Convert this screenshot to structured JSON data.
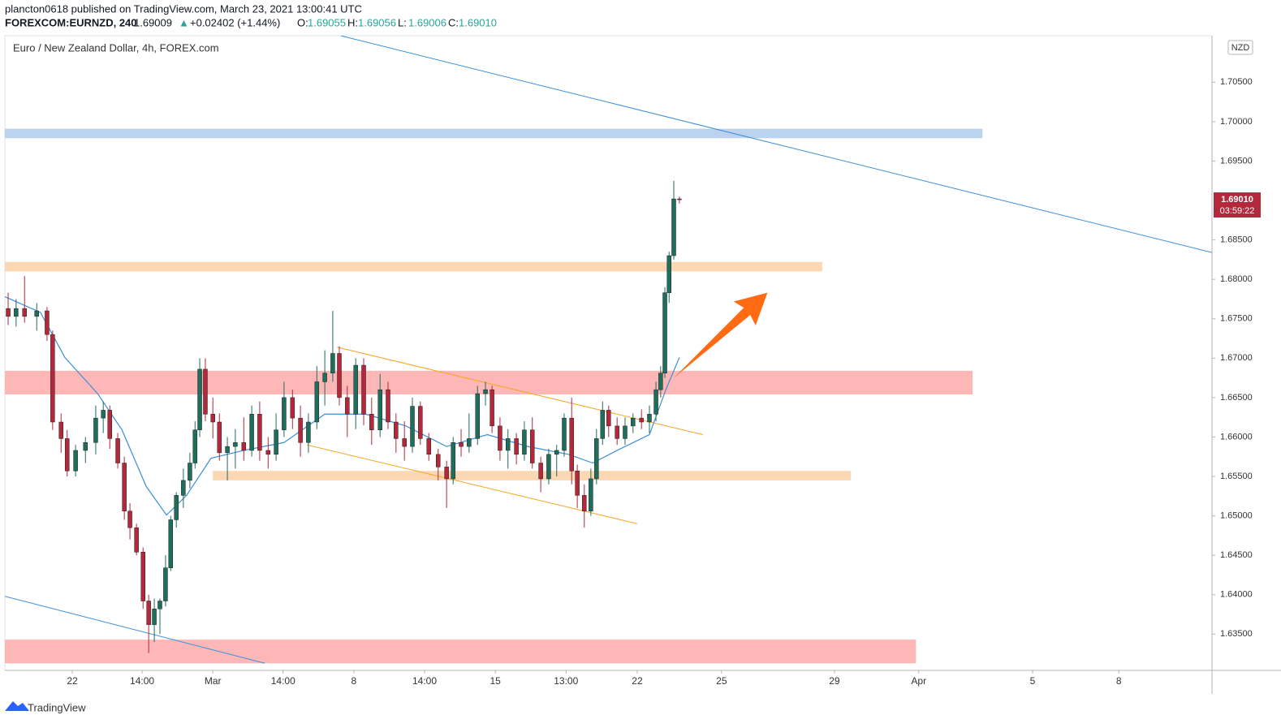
{
  "header": {
    "publisher": "plancton0618 published on TradingView.com, March 23, 2021 13:00:41 UTC",
    "symbol": "FOREXCOM:EURNZD, 240",
    "last": "1.69009",
    "change": "+0.02402 (+1.44%)",
    "ohlc": [
      {
        "label": "O:",
        "value": "1.69055"
      },
      {
        "label": "H:",
        "value": "1.69056"
      },
      {
        "label": "L:",
        "value": "1.69006"
      },
      {
        "label": "C:",
        "value": "1.69010"
      }
    ],
    "logo": "TradingView"
  },
  "chart_data": {
    "type": "candlestick",
    "title": "Euro / New Zealand Dollar, 4h, FOREX.com",
    "currency": "NZD",
    "up_color": "#1f6e5c",
    "down_color": "#b3283a",
    "xlim": [
      0,
      257.7
    ],
    "ylim": [
      1.6304,
      1.7109
    ],
    "xticks": [
      {
        "value": 14.4,
        "label": "22"
      },
      {
        "value": 29.3,
        "label": "14:00"
      },
      {
        "value": 44.4,
        "label": "Mar"
      },
      {
        "value": 59.4,
        "label": "14:00"
      },
      {
        "value": 74.5,
        "label": "8"
      },
      {
        "value": 89.6,
        "label": "14:00"
      },
      {
        "value": 104.7,
        "label": "15"
      },
      {
        "value": 119.8,
        "label": "13:00"
      },
      {
        "value": 135.0,
        "label": "22"
      },
      {
        "value": 153.0,
        "label": "25"
      },
      {
        "value": 177.1,
        "label": "29"
      },
      {
        "value": 195.1,
        "label": "Apr"
      },
      {
        "value": 219.4,
        "label": "5"
      },
      {
        "value": 237.8,
        "label": "8"
      }
    ],
    "yticks": [
      {
        "value": 1.705,
        "label": "1.70500"
      },
      {
        "value": 1.7,
        "label": "1.70000"
      },
      {
        "value": 1.695,
        "label": "1.69500"
      },
      {
        "value": 1.685,
        "label": "1.68500"
      },
      {
        "value": 1.68,
        "label": "1.68000"
      },
      {
        "value": 1.675,
        "label": "1.67500"
      },
      {
        "value": 1.67,
        "label": "1.67000"
      },
      {
        "value": 1.665,
        "label": "1.66500"
      },
      {
        "value": 1.66,
        "label": "1.66000"
      },
      {
        "value": 1.655,
        "label": "1.65500"
      },
      {
        "value": 1.65,
        "label": "1.65000"
      },
      {
        "value": 1.645,
        "label": "1.64500"
      },
      {
        "value": 1.64,
        "label": "1.64000"
      },
      {
        "value": 1.635,
        "label": "1.63500"
      }
    ],
    "price_label": {
      "value": 1.6901,
      "label": "1.69010"
    },
    "countdown": "03:59:22",
    "candles": [
      [
        0.7,
        1.6763,
        1.6783,
        1.6742,
        1.6753
      ],
      [
        2.4,
        1.6753,
        1.6775,
        1.674,
        1.6763
      ],
      [
        4.2,
        1.6763,
        1.6804,
        1.6745,
        1.6753
      ],
      [
        6.8,
        1.6753,
        1.677,
        1.6735,
        1.676
      ],
      [
        9.0,
        1.676,
        1.6765,
        1.6722,
        1.673
      ],
      [
        10.2,
        1.673,
        1.6735,
        1.6609,
        1.6619
      ],
      [
        12.0,
        1.6619,
        1.663,
        1.658,
        1.6598
      ],
      [
        13.3,
        1.6598,
        1.6609,
        1.655,
        1.6557
      ],
      [
        15.1,
        1.6557,
        1.659,
        1.655,
        1.6583
      ],
      [
        17.2,
        1.6583,
        1.66,
        1.6567,
        1.6593
      ],
      [
        19.4,
        1.6593,
        1.664,
        1.6578,
        1.6624
      ],
      [
        21.0,
        1.6624,
        1.6645,
        1.6605,
        1.6634
      ],
      [
        22.4,
        1.6634,
        1.664,
        1.6585,
        1.6598
      ],
      [
        24.1,
        1.6598,
        1.6605,
        1.656,
        1.6567
      ],
      [
        25.5,
        1.6567,
        1.6575,
        1.6495,
        1.6506
      ],
      [
        26.7,
        1.6506,
        1.6516,
        1.647,
        1.6485
      ],
      [
        28.1,
        1.6485,
        1.649,
        1.645,
        1.6454
      ],
      [
        29.5,
        1.6454,
        1.646,
        1.6382,
        1.6392
      ],
      [
        30.7,
        1.6392,
        1.64,
        1.6326,
        1.6362
      ],
      [
        31.9,
        1.6362,
        1.6395,
        1.634,
        1.6382
      ],
      [
        33.1,
        1.6382,
        1.6395,
        1.635,
        1.6392
      ],
      [
        34.3,
        1.6392,
        1.645,
        1.6385,
        1.6434
      ],
      [
        35.4,
        1.6434,
        1.65,
        1.643,
        1.6495
      ],
      [
        36.6,
        1.6495,
        1.653,
        1.6485,
        1.6526
      ],
      [
        38.1,
        1.6526,
        1.656,
        1.651,
        1.6545
      ],
      [
        39.5,
        1.6545,
        1.658,
        1.6535,
        1.6567
      ],
      [
        40.6,
        1.6567,
        1.662,
        1.656,
        1.6609
      ],
      [
        41.6,
        1.6609,
        1.67,
        1.66,
        1.6686
      ],
      [
        42.8,
        1.6686,
        1.67,
        1.662,
        1.6629
      ],
      [
        44.4,
        1.6629,
        1.665,
        1.6598,
        1.6619
      ],
      [
        45.8,
        1.6619,
        1.663,
        1.657,
        1.658
      ],
      [
        47.5,
        1.658,
        1.66,
        1.6545,
        1.6588
      ],
      [
        49.2,
        1.6588,
        1.661,
        1.656,
        1.6593
      ],
      [
        51.0,
        1.6593,
        1.6625,
        1.657,
        1.6583
      ],
      [
        52.7,
        1.6583,
        1.664,
        1.6575,
        1.6629
      ],
      [
        54.4,
        1.6629,
        1.6645,
        1.657,
        1.6583
      ],
      [
        56.2,
        1.6583,
        1.66,
        1.656,
        1.6578
      ],
      [
        57.9,
        1.6578,
        1.663,
        1.657,
        1.6609
      ],
      [
        59.6,
        1.6609,
        1.667,
        1.66,
        1.665
      ],
      [
        61.4,
        1.665,
        1.666,
        1.661,
        1.6624
      ],
      [
        63.1,
        1.6624,
        1.664,
        1.6575,
        1.6593
      ],
      [
        64.8,
        1.6593,
        1.663,
        1.658,
        1.6619
      ],
      [
        66.6,
        1.6619,
        1.669,
        1.661,
        1.667
      ],
      [
        68.3,
        1.667,
        1.671,
        1.664,
        1.6681
      ],
      [
        70.0,
        1.6681,
        1.676,
        1.667,
        1.6706
      ],
      [
        71.4,
        1.6706,
        1.6715,
        1.664,
        1.665
      ],
      [
        73.1,
        1.665,
        1.6665,
        1.66,
        1.6629
      ],
      [
        74.9,
        1.6629,
        1.67,
        1.661,
        1.6691
      ],
      [
        76.6,
        1.6691,
        1.67,
        1.6615,
        1.6629
      ],
      [
        78.3,
        1.6629,
        1.665,
        1.659,
        1.6609
      ],
      [
        80.1,
        1.6609,
        1.668,
        1.66,
        1.666
      ],
      [
        81.8,
        1.666,
        1.667,
        1.661,
        1.6619
      ],
      [
        83.5,
        1.6619,
        1.663,
        1.658,
        1.6598
      ],
      [
        85.3,
        1.6598,
        1.662,
        1.657,
        1.6588
      ],
      [
        87.0,
        1.6588,
        1.665,
        1.658,
        1.6639
      ],
      [
        88.7,
        1.6639,
        1.6645,
        1.659,
        1.6598
      ],
      [
        90.5,
        1.6598,
        1.6605,
        1.657,
        1.6578
      ],
      [
        92.5,
        1.6578,
        1.6585,
        1.6545,
        1.6562
      ],
      [
        94.3,
        1.6562,
        1.657,
        1.651,
        1.6547
      ],
      [
        95.7,
        1.6547,
        1.66,
        1.654,
        1.6593
      ],
      [
        97.4,
        1.6593,
        1.661,
        1.6575,
        1.6588
      ],
      [
        99.1,
        1.6588,
        1.663,
        1.658,
        1.6598
      ],
      [
        100.9,
        1.6598,
        1.6665,
        1.659,
        1.6655
      ],
      [
        102.6,
        1.6655,
        1.667,
        1.664,
        1.666
      ],
      [
        104.0,
        1.666,
        1.6665,
        1.6605,
        1.6614
      ],
      [
        105.7,
        1.6614,
        1.6625,
        1.657,
        1.6583
      ],
      [
        107.4,
        1.6583,
        1.661,
        1.656,
        1.6598
      ],
      [
        109.2,
        1.6598,
        1.6605,
        1.6565,
        1.6578
      ],
      [
        110.9,
        1.6578,
        1.662,
        1.657,
        1.6609
      ],
      [
        112.6,
        1.6609,
        1.6625,
        1.656,
        1.6567
      ],
      [
        114.4,
        1.6567,
        1.6575,
        1.653,
        1.6547
      ],
      [
        116.1,
        1.6547,
        1.6585,
        1.654,
        1.6578
      ],
      [
        117.8,
        1.6578,
        1.659,
        1.655,
        1.6583
      ],
      [
        119.4,
        1.6583,
        1.663,
        1.6575,
        1.6624
      ],
      [
        121.0,
        1.6624,
        1.665,
        1.654,
        1.6557
      ],
      [
        122.2,
        1.6557,
        1.6565,
        1.651,
        1.6526
      ],
      [
        123.7,
        1.6526,
        1.654,
        1.6485,
        1.6506
      ],
      [
        125.1,
        1.6506,
        1.656,
        1.65,
        1.6547
      ],
      [
        126.3,
        1.6547,
        1.661,
        1.654,
        1.6598
      ],
      [
        127.6,
        1.6598,
        1.6645,
        1.659,
        1.6634
      ],
      [
        128.9,
        1.6634,
        1.664,
        1.66,
        1.6614
      ],
      [
        130.7,
        1.6614,
        1.6625,
        1.659,
        1.6598
      ],
      [
        132.4,
        1.6598,
        1.6625,
        1.659,
        1.6614
      ],
      [
        134.1,
        1.6614,
        1.663,
        1.6605,
        1.6624
      ],
      [
        135.9,
        1.6624,
        1.6635,
        1.661,
        1.6619
      ],
      [
        137.6,
        1.6619,
        1.664,
        1.6605,
        1.6629
      ],
      [
        139.0,
        1.6629,
        1.667,
        1.662,
        1.666
      ],
      [
        140.0,
        1.666,
        1.669,
        1.665,
        1.6681
      ],
      [
        140.9,
        1.6681,
        1.679,
        1.6675,
        1.6783
      ],
      [
        141.8,
        1.6783,
        1.6835,
        1.677,
        1.683
      ],
      [
        142.8,
        1.683,
        1.6925,
        1.6825,
        1.6902
      ],
      [
        144.0,
        1.6902,
        1.6905,
        1.6896,
        1.6901
      ]
    ],
    "moving_average": {
      "color": "#3d8fd9",
      "x": [
        0,
        7.6,
        12.8,
        19.8,
        25,
        30.2,
        34.5,
        38.8,
        44,
        51,
        59.6,
        68.3,
        77,
        85.6,
        94.3,
        103,
        111.6,
        120.3,
        125.5,
        130.7,
        137.6,
        141.1,
        144
      ],
      "values": [
        1.6778,
        1.6758,
        1.6701,
        1.6655,
        1.6609,
        1.6537,
        1.6501,
        1.6526,
        1.6573,
        1.6583,
        1.6593,
        1.6629,
        1.6629,
        1.6614,
        1.6588,
        1.6603,
        1.6588,
        1.6578,
        1.6567,
        1.6583,
        1.6603,
        1.666,
        1.6701
      ]
    },
    "zones": [
      {
        "x": [
          0,
          208.7
        ],
        "y": [
          1.6979,
          1.6991
        ],
        "color": "#bcd3f0"
      },
      {
        "x": [
          0,
          174.5
        ],
        "y": [
          1.681,
          1.6822
        ],
        "color": "#fbd7b3"
      },
      {
        "x": [
          0,
          206.6
        ],
        "y": [
          1.6654,
          1.6684
        ],
        "color": "#fdb7b7"
      },
      {
        "x": [
          44.4,
          180.6
        ],
        "y": [
          1.6545,
          1.6557
        ],
        "color": "#fbd7b3"
      },
      {
        "x": [
          0,
          194.5
        ],
        "y": [
          1.6313,
          1.6343
        ],
        "color": "#fdb7b7"
      }
    ],
    "trend_lines": [
      {
        "x": [
          71.7,
          257.7
        ],
        "y": [
          1.7109,
          1.6834
        ],
        "color": "#3d8fd9"
      },
      {
        "x": [
          0,
          55.5
        ],
        "y": [
          1.6398,
          1.6313
        ],
        "color": "#3d8fd9"
      },
      {
        "x": [
          70.9,
          149.0
        ],
        "y": [
          1.6714,
          1.6603
        ],
        "color": "#f5a623"
      },
      {
        "x": [
          64.5,
          135.0
        ],
        "y": [
          1.659,
          1.649
        ],
        "color": "#f5a623"
      }
    ],
    "arrow": {
      "x": [
        142.8,
        162.8
      ],
      "y": [
        1.6675,
        1.6783
      ],
      "color": "#ff6a13"
    }
  }
}
